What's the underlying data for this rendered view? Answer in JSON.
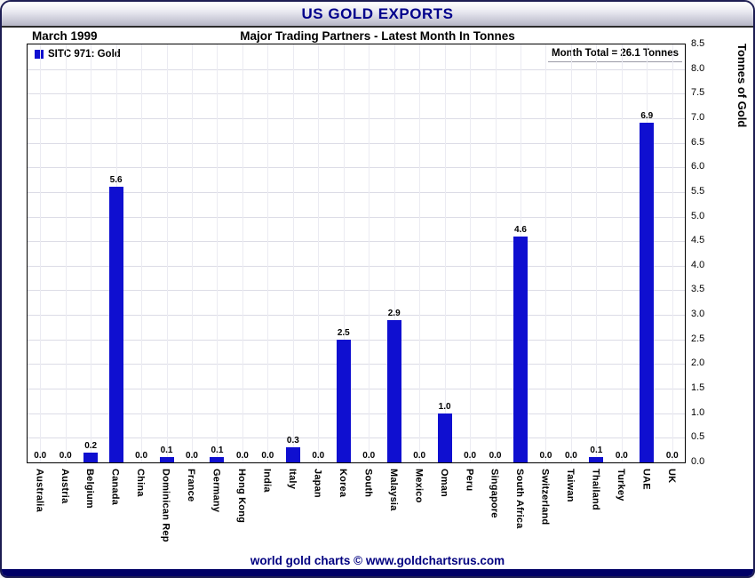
{
  "window": {
    "title": "US GOLD EXPORTS"
  },
  "header": {
    "date": "March 1999",
    "subtitle": "Major Trading Partners - Latest Month In Tonnes"
  },
  "legend": {
    "label": "SITC 971: Gold"
  },
  "annotations": {
    "month_total": "Month Total = 26.1 Tonnes"
  },
  "footer": {
    "credit": "world gold charts © www.goldchartsrus.com"
  },
  "colors": {
    "bar": "#0f0fd0",
    "title": "#00008b",
    "footer_text": "#000080",
    "bottom_bar": "#000066"
  },
  "chart_data": {
    "type": "bar",
    "title": "US GOLD EXPORTS",
    "subtitle": "Major Trading Partners - Latest Month In Tonnes",
    "period": "March 1999",
    "month_total": 26.1,
    "legend": "SITC 971: Gold",
    "categories": [
      "Australia",
      "Austria",
      "Belgium",
      "Canada",
      "China",
      "Dominican Rep",
      "France",
      "Germany",
      "Hong Kong",
      "India",
      "Italy",
      "Japan",
      "Korea",
      "South",
      "Malaysia",
      "Mexico",
      "Oman",
      "Peru",
      "Singapore",
      "South Africa",
      "Switzerland",
      "Taiwan",
      "Thailand",
      "Turkey",
      "UAE",
      "UK"
    ],
    "values": [
      0.0,
      0.0,
      0.2,
      5.6,
      0.0,
      0.1,
      0.0,
      0.1,
      0.0,
      0.0,
      0.3,
      0.0,
      2.5,
      0.0,
      2.9,
      0.0,
      1.0,
      0.0,
      0.0,
      4.6,
      0.0,
      0.0,
      0.1,
      0.0,
      6.9,
      0.0
    ],
    "xlabel": "",
    "ylabel": "Tonnes of Gold",
    "ylim": [
      0,
      8.5
    ],
    "ytick_step": 0.5,
    "grid": true,
    "legend_position": "top-left",
    "value_labels": true
  }
}
